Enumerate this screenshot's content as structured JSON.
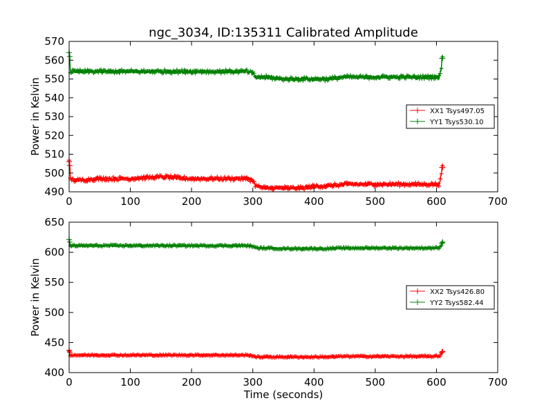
{
  "figure": {
    "title": "ngc_3034, ID:135311 Calibrated Amplitude",
    "xlabel": "Time (seconds)",
    "background": "#ffffff"
  },
  "chart_data": [
    {
      "type": "line",
      "marker": "+",
      "title": "ngc_3034, ID:135311 Calibrated Amplitude",
      "xlabel": "",
      "ylabel": "Power in Kelvin",
      "xlim": [
        0,
        700
      ],
      "ylim": [
        490,
        570
      ],
      "xticks": [
        0,
        100,
        200,
        300,
        400,
        500,
        600,
        700
      ],
      "yticks": [
        490,
        500,
        510,
        520,
        530,
        540,
        550,
        560,
        570
      ],
      "grid": false,
      "legend_position": "right",
      "series": [
        {
          "name": "XX1 Tsys497.05",
          "color": "#ff0000",
          "x": [
            0,
            1,
            2,
            10,
            50,
            100,
            150,
            200,
            250,
            290,
            300,
            305,
            320,
            350,
            380,
            400,
            420,
            450,
            500,
            550,
            600,
            605,
            606,
            608,
            609,
            610
          ],
          "y": [
            506,
            504,
            497,
            496,
            497,
            497,
            498,
            497,
            497,
            497,
            496,
            493,
            492,
            492,
            492,
            493,
            493,
            494,
            494,
            494,
            494,
            494,
            496,
            500,
            503,
            503
          ],
          "noise": 1.0
        },
        {
          "name": "YY1 Tsys530.10",
          "color": "#008000",
          "x": [
            0,
            1,
            2,
            10,
            50,
            100,
            150,
            200,
            250,
            290,
            300,
            305,
            320,
            350,
            380,
            400,
            420,
            450,
            500,
            550,
            600,
            605,
            606,
            608,
            609,
            610
          ],
          "y": [
            564,
            562,
            554,
            554,
            554,
            554,
            554,
            554,
            554,
            554,
            553,
            551,
            551,
            550,
            550,
            550,
            550,
            551,
            551,
            551,
            551,
            551,
            553,
            556,
            561,
            561
          ],
          "noise": 1.0
        }
      ]
    },
    {
      "type": "line",
      "marker": "+",
      "title": "",
      "xlabel": "Time (seconds)",
      "ylabel": "Power in Kelvin",
      "xlim": [
        0,
        700
      ],
      "ylim": [
        400,
        650
      ],
      "xticks": [
        0,
        100,
        200,
        300,
        400,
        500,
        600,
        700
      ],
      "yticks": [
        400,
        450,
        500,
        550,
        600,
        650
      ],
      "grid": false,
      "legend_position": "right",
      "series": [
        {
          "name": "XX2 Tsys426.80",
          "color": "#ff0000",
          "x": [
            0,
            1,
            2,
            10,
            50,
            100,
            150,
            200,
            250,
            290,
            300,
            305,
            320,
            350,
            380,
            400,
            420,
            450,
            500,
            550,
            600,
            605,
            607,
            609,
            610
          ],
          "y": [
            437,
            434,
            429,
            429,
            429,
            429,
            429,
            429,
            429,
            429,
            428,
            426,
            426,
            426,
            426,
            426,
            426,
            427,
            427,
            427,
            427,
            427,
            430,
            434,
            435
          ],
          "noise": 1.3
        },
        {
          "name": "YY2 Tsys582.44",
          "color": "#008000",
          "x": [
            0,
            1,
            2,
            10,
            50,
            100,
            150,
            200,
            250,
            290,
            300,
            305,
            320,
            350,
            380,
            400,
            420,
            450,
            500,
            550,
            600,
            605,
            607,
            609,
            610
          ],
          "y": [
            621,
            617,
            611,
            611,
            611,
            611,
            611,
            611,
            611,
            611,
            610,
            607,
            607,
            606,
            606,
            606,
            606,
            607,
            607,
            607,
            607,
            607,
            610,
            615,
            617
          ],
          "noise": 1.5
        }
      ]
    }
  ]
}
